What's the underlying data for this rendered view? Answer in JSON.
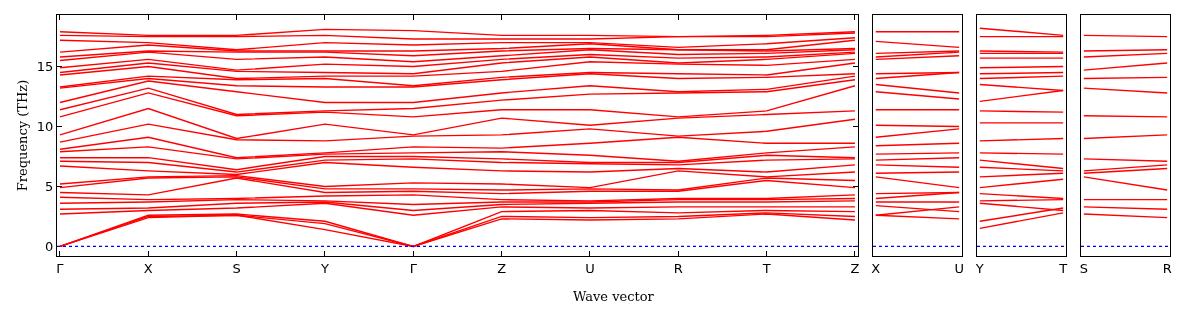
{
  "chart_data": [
    {
      "type": "line",
      "ylabel": "Frequency (THz)",
      "xlabel": "Wave vector",
      "categories": [
        "Γ",
        "X",
        "S",
        "Y",
        "Γ",
        "Z",
        "U",
        "R",
        "T",
        "Z"
      ],
      "ylim": [
        -0.8,
        19.3
      ],
      "yticks": [
        0,
        5,
        10,
        15
      ],
      "marker": "none",
      "line_style": "solid",
      "ref_lines": [
        {
          "axis": "y",
          "value": 0,
          "color": "#0000ff",
          "line_style": "dotted"
        }
      ],
      "series": [
        {
          "color": "#ff0000",
          "values": [
            0,
            2.4,
            2.6,
            1.4,
            0,
            2.3,
            2.2,
            2.3,
            2.7,
            2.2
          ]
        },
        {
          "color": "#ff0000",
          "values": [
            0,
            2.5,
            2.6,
            1.9,
            0,
            2.5,
            2.4,
            2.5,
            2.8,
            2.5
          ]
        },
        {
          "color": "#ff0000",
          "values": [
            0,
            2.6,
            2.7,
            2.1,
            0,
            2.9,
            3.0,
            2.8,
            3.0,
            2.9
          ]
        },
        {
          "color": "#ff0000",
          "values": [
            2.7,
            3.0,
            3.2,
            3.6,
            2.6,
            3.3,
            3.2,
            3.3,
            3.3,
            3.3
          ]
        },
        {
          "color": "#ff0000",
          "values": [
            3.1,
            3.2,
            3.6,
            3.7,
            3.0,
            3.5,
            3.6,
            3.7,
            3.7,
            3.8
          ]
        },
        {
          "color": "#ff0000",
          "values": [
            3.6,
            3.7,
            3.9,
            3.8,
            3.5,
            3.7,
            3.7,
            3.9,
            3.9,
            4.0
          ]
        },
        {
          "color": "#ff0000",
          "values": [
            4.1,
            3.9,
            4.0,
            4.2,
            4.3,
            3.9,
            3.8,
            4.0,
            4.0,
            4.3
          ]
        },
        {
          "color": "#ff0000",
          "values": [
            4.5,
            4.3,
            5.7,
            4.5,
            4.6,
            4.4,
            4.6,
            4.6,
            5.5,
            4.9
          ]
        },
        {
          "color": "#ff0000",
          "values": [
            4.9,
            5.7,
            5.8,
            4.8,
            4.8,
            4.7,
            4.8,
            4.7,
            5.7,
            5.5
          ]
        },
        {
          "color": "#ff0000",
          "values": [
            5.2,
            5.8,
            5.9,
            5.0,
            5.3,
            5.2,
            4.9,
            6.3,
            5.8,
            6.2
          ]
        },
        {
          "color": "#ff0000",
          "values": [
            6.7,
            6.3,
            6.0,
            7.0,
            6.6,
            6.3,
            6.2,
            6.5,
            6.2,
            6.8
          ]
        },
        {
          "color": "#ff0000",
          "values": [
            7.1,
            7.0,
            6.2,
            7.2,
            7.3,
            7.0,
            6.9,
            6.8,
            7.2,
            7.3
          ]
        },
        {
          "color": "#ff0000",
          "values": [
            7.4,
            7.4,
            6.4,
            7.5,
            7.5,
            7.3,
            7.0,
            7.0,
            7.6,
            7.4
          ]
        },
        {
          "color": "#ff0000",
          "values": [
            7.9,
            8.3,
            7.3,
            7.7,
            7.8,
            7.9,
            7.6,
            7.1,
            7.8,
            8.3
          ]
        },
        {
          "color": "#ff0000",
          "values": [
            8.1,
            9.1,
            7.4,
            7.8,
            8.3,
            8.2,
            8.6,
            9.1,
            8.6,
            8.6
          ]
        },
        {
          "color": "#ff0000",
          "values": [
            8.7,
            10.2,
            8.9,
            8.8,
            9.2,
            9.3,
            9.8,
            9.2,
            9.6,
            10.6
          ]
        },
        {
          "color": "#ff0000",
          "values": [
            9.3,
            11.5,
            9.0,
            10.2,
            9.3,
            10.7,
            10.1,
            10.7,
            11.0,
            11.3
          ]
        },
        {
          "color": "#ff0000",
          "values": [
            10.8,
            12.8,
            10.9,
            11.2,
            10.8,
            11.4,
            11.4,
            10.8,
            11.3,
            13.4
          ]
        },
        {
          "color": "#ff0000",
          "values": [
            11.4,
            13.2,
            11.0,
            11.3,
            11.5,
            12.2,
            12.7,
            12.8,
            12.9,
            13.9
          ]
        },
        {
          "color": "#ff0000",
          "values": [
            12.0,
            13.8,
            12.9,
            12.0,
            12.0,
            12.8,
            13.4,
            12.9,
            13.1,
            14.2
          ]
        },
        {
          "color": "#ff0000",
          "values": [
            13.2,
            14.0,
            13.4,
            13.3,
            13.3,
            13.9,
            14.4,
            14.0,
            14.1,
            14.4
          ]
        },
        {
          "color": "#ff0000",
          "values": [
            13.3,
            14.2,
            13.9,
            14.0,
            13.4,
            14.1,
            14.5,
            14.4,
            14.3,
            15.3
          ]
        },
        {
          "color": "#ff0000",
          "values": [
            14.3,
            15.0,
            14.0,
            14.2,
            14.2,
            14.6,
            15.4,
            15.2,
            15.1,
            15.6
          ]
        },
        {
          "color": "#ff0000",
          "values": [
            14.5,
            15.3,
            14.6,
            14.5,
            14.4,
            15.3,
            15.8,
            15.3,
            15.6,
            16.1
          ]
        },
        {
          "color": "#ff0000",
          "values": [
            14.9,
            15.6,
            14.7,
            15.2,
            15.0,
            15.6,
            16.0,
            15.7,
            15.8,
            16.2
          ]
        },
        {
          "color": "#ff0000",
          "values": [
            15.5,
            16.2,
            15.6,
            15.8,
            15.4,
            15.9,
            16.4,
            16.0,
            16.1,
            16.4
          ]
        },
        {
          "color": "#ff0000",
          "values": [
            15.8,
            16.3,
            16.2,
            16.2,
            15.9,
            16.3,
            16.5,
            16.4,
            16.3,
            16.5
          ]
        },
        {
          "color": "#ff0000",
          "values": [
            16.2,
            16.8,
            16.3,
            16.3,
            16.3,
            16.5,
            16.9,
            16.4,
            16.4,
            17.2
          ]
        },
        {
          "color": "#ff0000",
          "values": [
            17.2,
            17.0,
            16.4,
            17.0,
            16.8,
            17.0,
            17.0,
            16.6,
            16.9,
            17.4
          ]
        },
        {
          "color": "#ff0000",
          "values": [
            17.6,
            17.5,
            17.5,
            17.6,
            17.3,
            17.3,
            17.3,
            17.5,
            17.5,
            17.8
          ]
        },
        {
          "color": "#ff0000",
          "values": [
            17.9,
            17.6,
            17.6,
            18.1,
            18.0,
            17.6,
            17.6,
            17.5,
            17.6,
            17.9
          ]
        }
      ]
    },
    {
      "type": "line",
      "categories": [
        "X",
        "U"
      ],
      "ylim": [
        -0.8,
        19.3
      ],
      "tick_labels": "x",
      "marker": "none",
      "line_style": "solid",
      "ref_lines": [
        {
          "axis": "y",
          "value": 0,
          "color": "#0000ff",
          "line_style": "dotted"
        }
      ],
      "series": [
        {
          "color": "#ff0000",
          "values": [
            2.6,
            2.3
          ]
        },
        {
          "color": "#ff0000",
          "values": [
            2.6,
            3.3
          ]
        },
        {
          "color": "#ff0000",
          "values": [
            3.4,
            2.9
          ]
        },
        {
          "color": "#ff0000",
          "values": [
            3.7,
            3.7
          ]
        },
        {
          "color": "#ff0000",
          "values": [
            4.0,
            4.5
          ]
        },
        {
          "color": "#ff0000",
          "values": [
            4.4,
            4.5
          ]
        },
        {
          "color": "#ff0000",
          "values": [
            5.8,
            4.9
          ]
        },
        {
          "color": "#ff0000",
          "values": [
            6.1,
            6.2
          ]
        },
        {
          "color": "#ff0000",
          "values": [
            6.8,
            6.6
          ]
        },
        {
          "color": "#ff0000",
          "values": [
            7.2,
            7.4
          ]
        },
        {
          "color": "#ff0000",
          "values": [
            7.7,
            7.8
          ]
        },
        {
          "color": "#ff0000",
          "values": [
            8.4,
            8.6
          ]
        },
        {
          "color": "#ff0000",
          "values": [
            9.1,
            9.8
          ]
        },
        {
          "color": "#ff0000",
          "values": [
            10.1,
            10.0
          ]
        },
        {
          "color": "#ff0000",
          "values": [
            11.4,
            11.4
          ]
        },
        {
          "color": "#ff0000",
          "values": [
            12.9,
            12.3
          ]
        },
        {
          "color": "#ff0000",
          "values": [
            13.5,
            12.8
          ]
        },
        {
          "color": "#ff0000",
          "values": [
            14.0,
            14.5
          ]
        },
        {
          "color": "#ff0000",
          "values": [
            14.4,
            14.5
          ]
        },
        {
          "color": "#ff0000",
          "values": [
            15.6,
            15.9
          ]
        },
        {
          "color": "#ff0000",
          "values": [
            15.8,
            16.2
          ]
        },
        {
          "color": "#ff0000",
          "values": [
            16.1,
            16.3
          ]
        },
        {
          "color": "#ff0000",
          "values": [
            17.1,
            16.6
          ]
        },
        {
          "color": "#ff0000",
          "values": [
            17.9,
            17.9
          ]
        }
      ]
    },
    {
      "type": "line",
      "categories": [
        "Y",
        "T"
      ],
      "ylim": [
        -0.8,
        19.3
      ],
      "tick_labels": "x",
      "marker": "none",
      "line_style": "solid",
      "ref_lines": [
        {
          "axis": "y",
          "value": 0,
          "color": "#0000ff",
          "line_style": "dotted"
        }
      ],
      "series": [
        {
          "color": "#ff0000",
          "values": [
            1.5,
            2.8
          ]
        },
        {
          "color": "#ff0000",
          "values": [
            2.1,
            3.2
          ]
        },
        {
          "color": "#ff0000",
          "values": [
            3.6,
            3.0
          ]
        },
        {
          "color": "#ff0000",
          "values": [
            3.8,
            3.9
          ]
        },
        {
          "color": "#ff0000",
          "values": [
            4.4,
            4.0
          ]
        },
        {
          "color": "#ff0000",
          "values": [
            4.9,
            5.6
          ]
        },
        {
          "color": "#ff0000",
          "values": [
            5.8,
            6.1
          ]
        },
        {
          "color": "#ff0000",
          "values": [
            6.6,
            6.3
          ]
        },
        {
          "color": "#ff0000",
          "values": [
            7.2,
            6.5
          ]
        },
        {
          "color": "#ff0000",
          "values": [
            7.8,
            7.7
          ]
        },
        {
          "color": "#ff0000",
          "values": [
            8.8,
            9.0
          ]
        },
        {
          "color": "#ff0000",
          "values": [
            10.3,
            10.3
          ]
        },
        {
          "color": "#ff0000",
          "values": [
            11.3,
            11.2
          ]
        },
        {
          "color": "#ff0000",
          "values": [
            12.1,
            13.0
          ]
        },
        {
          "color": "#ff0000",
          "values": [
            13.5,
            13.0
          ]
        },
        {
          "color": "#ff0000",
          "values": [
            14.0,
            14.2
          ]
        },
        {
          "color": "#ff0000",
          "values": [
            14.4,
            14.5
          ]
        },
        {
          "color": "#ff0000",
          "values": [
            14.9,
            15.0
          ]
        },
        {
          "color": "#ff0000",
          "values": [
            15.7,
            15.7
          ]
        },
        {
          "color": "#ff0000",
          "values": [
            16.1,
            16.1
          ]
        },
        {
          "color": "#ff0000",
          "values": [
            16.3,
            16.2
          ]
        },
        {
          "color": "#ff0000",
          "values": [
            17.5,
            17.5
          ]
        },
        {
          "color": "#ff0000",
          "values": [
            18.2,
            17.6
          ]
        }
      ]
    },
    {
      "type": "line",
      "categories": [
        "S",
        "R"
      ],
      "ylim": [
        -0.8,
        19.3
      ],
      "tick_labels": "x",
      "marker": "none",
      "line_style": "solid",
      "ref_lines": [
        {
          "axis": "y",
          "value": 0,
          "color": "#0000ff",
          "line_style": "dotted"
        }
      ],
      "series": [
        {
          "color": "#ff0000",
          "values": [
            2.7,
            2.4
          ]
        },
        {
          "color": "#ff0000",
          "values": [
            3.3,
            3.1
          ]
        },
        {
          "color": "#ff0000",
          "values": [
            3.9,
            3.9
          ]
        },
        {
          "color": "#ff0000",
          "values": [
            5.8,
            4.7
          ]
        },
        {
          "color": "#ff0000",
          "values": [
            6.1,
            6.5
          ]
        },
        {
          "color": "#ff0000",
          "values": [
            6.3,
            6.8
          ]
        },
        {
          "color": "#ff0000",
          "values": [
            7.3,
            7.1
          ]
        },
        {
          "color": "#ff0000",
          "values": [
            9.0,
            9.3
          ]
        },
        {
          "color": "#ff0000",
          "values": [
            10.9,
            10.8
          ]
        },
        {
          "color": "#ff0000",
          "values": [
            13.2,
            12.8
          ]
        },
        {
          "color": "#ff0000",
          "values": [
            14.0,
            14.1
          ]
        },
        {
          "color": "#ff0000",
          "values": [
            14.7,
            15.3
          ]
        },
        {
          "color": "#ff0000",
          "values": [
            15.8,
            16.1
          ]
        },
        {
          "color": "#ff0000",
          "values": [
            16.3,
            16.4
          ]
        },
        {
          "color": "#ff0000",
          "values": [
            17.6,
            17.5
          ]
        }
      ]
    }
  ]
}
